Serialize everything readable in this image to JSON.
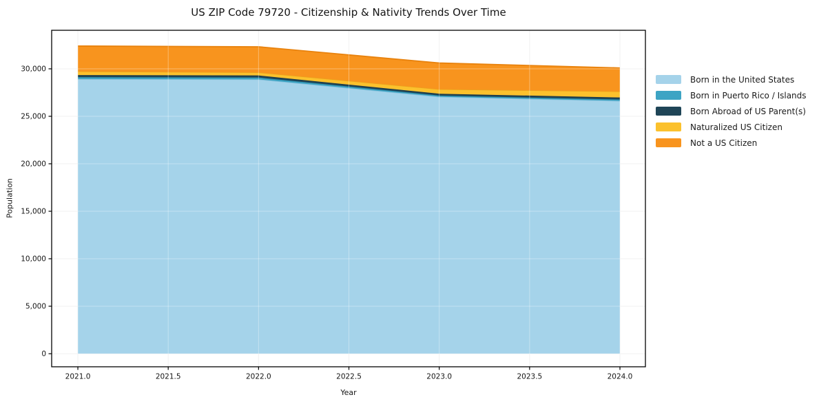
{
  "chart": {
    "title": "US ZIP Code 79720 - Citizenship & Nativity Trends Over Time",
    "xlabel": "Year",
    "ylabel": "Population"
  },
  "chart_data": {
    "type": "area",
    "stacked": true,
    "title": "US ZIP Code 79720 - Citizenship & Nativity Trends Over Time",
    "xlabel": "Year",
    "ylabel": "Population",
    "x": [
      2021,
      2022,
      2023,
      2024
    ],
    "series": [
      {
        "name": "Born in the United States",
        "values": [
          28920,
          28890,
          27060,
          26620
        ],
        "fill": "#a5d3ea",
        "edge": "#8cc3de"
      },
      {
        "name": "Born in Puerto Rico / Islands",
        "values": [
          200,
          195,
          125,
          145
        ],
        "fill": "#3da4c4",
        "edge": "#2e93b2"
      },
      {
        "name": "Born Abroad of US Parent(s)",
        "values": [
          220,
          215,
          190,
          215
        ],
        "fill": "#1f4557",
        "edge": "#16374a"
      },
      {
        "name": "Naturalized US Citizen",
        "values": [
          400,
          330,
          485,
          650
        ],
        "fill": "#fbc12d",
        "edge": "#ed9f1c"
      },
      {
        "name": "Not a US Citizen",
        "values": [
          2660,
          2690,
          2750,
          2460
        ],
        "fill": "#f8941e",
        "edge": "#e8820d"
      }
    ],
    "totals": [
      32400,
      32320,
      30610,
      30090
    ],
    "xticks": {
      "values": [
        2021.0,
        2021.5,
        2022.0,
        2022.5,
        2023.0,
        2023.5,
        2024.0
      ],
      "labels": [
        "2021.0",
        "2021.5",
        "2022.0",
        "2022.5",
        "2023.0",
        "2023.5",
        "2024.0"
      ]
    },
    "yticks": {
      "values": [
        0,
        5000,
        10000,
        15000,
        20000,
        25000,
        30000
      ],
      "labels": [
        "0",
        "5,000",
        "10,000",
        "15,000",
        "20,000",
        "25,000",
        "30,000"
      ]
    },
    "xlim": [
      2020.855,
      2024.141
    ],
    "ylim": [
      -1377,
      34058
    ],
    "grid": true,
    "legend_position": "right-outside",
    "colors": {
      "grid": "#ececec",
      "grid_overlay": "rgba(255,255,255,0.35)",
      "spine": "#000000",
      "text": "#141414"
    }
  }
}
